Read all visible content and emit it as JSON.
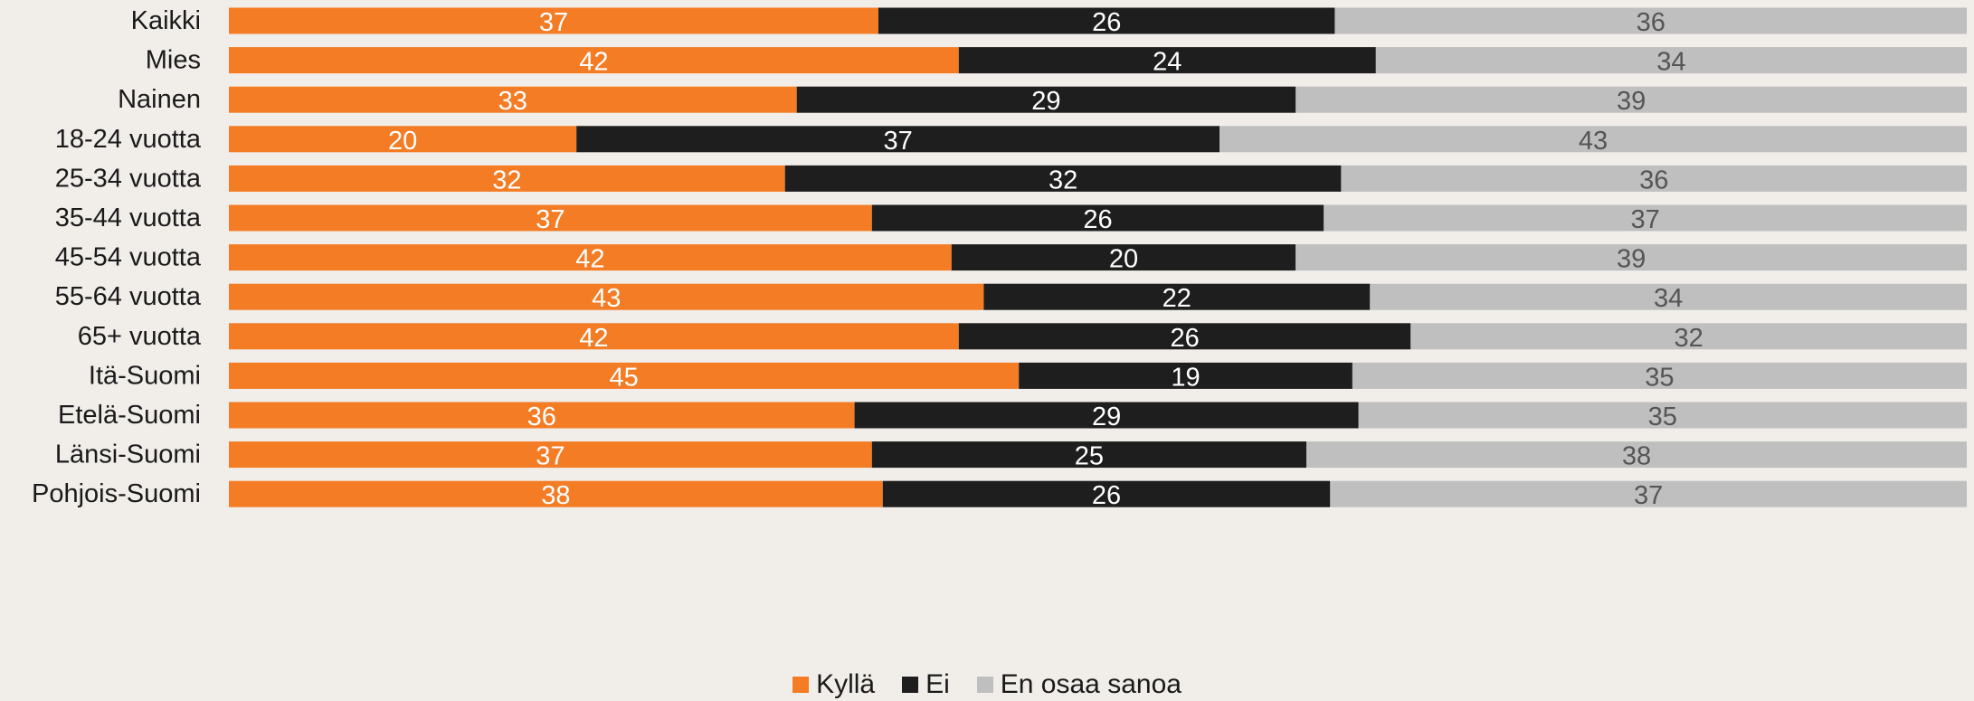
{
  "colors": {
    "Kyllä": "#f47c25",
    "Ei": "#1e1e1e",
    "En osaa sanoa": "#bfbfbf"
  },
  "chart_data": {
    "type": "bar",
    "orientation": "horizontal",
    "stacked": true,
    "title": "",
    "xlabel": "",
    "ylabel": "",
    "xlim": [
      0,
      100
    ],
    "grid": false,
    "legend_position": "bottom",
    "categories": [
      "Kaikki",
      "Mies",
      "Nainen",
      "18-24 vuotta",
      "25-34 vuotta",
      "35-44 vuotta",
      "45-54 vuotta",
      "55-64 vuotta",
      "65+ vuotta",
      "Itä-Suomi",
      "Etelä-Suomi",
      "Länsi-Suomi",
      "Pohjois-Suomi"
    ],
    "groups": [
      [
        0
      ],
      [
        1,
        2
      ],
      [
        3,
        4,
        5,
        6,
        7,
        8
      ],
      [
        9,
        10,
        11,
        12
      ]
    ],
    "series": [
      {
        "name": "Kyllä",
        "values": [
          37,
          42,
          33,
          20,
          32,
          37,
          42,
          43,
          42,
          45,
          36,
          37,
          38
        ]
      },
      {
        "name": "Ei",
        "values": [
          26,
          24,
          29,
          37,
          32,
          26,
          20,
          22,
          26,
          19,
          29,
          25,
          26
        ]
      },
      {
        "name": "En osaa sanoa",
        "values": [
          36,
          34,
          39,
          43,
          36,
          37,
          39,
          34,
          32,
          35,
          35,
          38,
          37
        ]
      }
    ]
  }
}
